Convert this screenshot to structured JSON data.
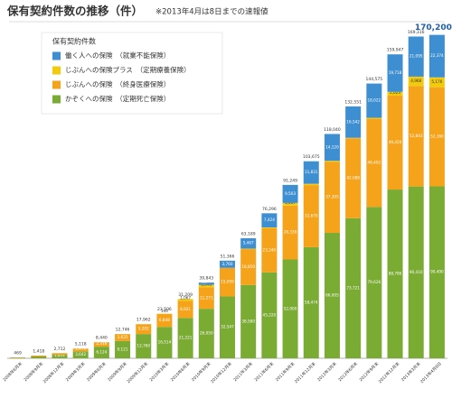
{
  "chart_data": {
    "type": "stacked-bar",
    "title": "保有契約件数の推移（件）",
    "subtitle": "※2013年4月は8日までの速報値",
    "legend_title": "保有契約件数",
    "categories": [
      "2008年6月末",
      "2008年9月末",
      "2008年12月末",
      "2009年3月末",
      "2009年6月末",
      "2009年9月末",
      "2009年12月末",
      "2010年3月末",
      "2010年6月末",
      "2010年9月末",
      "2010年12月末",
      "2011年3月末",
      "2011年6月末",
      "2011年9月末",
      "2011年12月末",
      "2012年3月末",
      "2012年6月末",
      "2012年9月末",
      "2012年12月末",
      "2013年3月末",
      "2013年4月8日"
    ],
    "series": [
      {
        "name": "かぞくへの保険　（定期死亡保険）",
        "color": "#7aab33",
        "values": [
          281,
          954,
          1851,
          3642,
          6124,
          9121,
          12760,
          16514,
          21221,
          26050,
          32547,
          38580,
          45220,
          52000,
          58474,
          66005,
          73721,
          79626,
          88786,
          90410,
          90490
        ],
        "value_labels": [
          "281",
          "954",
          "1,851",
          "3,642",
          "6,124",
          "9,121",
          "12,760",
          "16,514",
          "21,221",
          "26,050",
          "32,547",
          "38,580",
          "45,220",
          "52,000",
          "58,474",
          "66,005",
          "73,721",
          "79,626",
          "88,786",
          "90,410",
          "90,490"
        ]
      },
      {
        "name": "じぶんへの保険　（終身医療保険）",
        "color": "#f5a31a",
        "values": [
          188,
          464,
          861,
          1476,
          2316,
          3625,
          5202,
          6848,
          8921,
          11271,
          15059,
          18850,
          23240,
          28339,
          32670,
          37305,
          42088,
          46402,
          49420,
          52843,
          52160
        ],
        "value_labels": [
          "188",
          "464",
          "861",
          "1,476",
          "2,316",
          "3,625",
          "5,202",
          "6,848",
          "8,921",
          "11,271",
          "15,059",
          "18,850",
          "23,240",
          "28,339",
          "32,670",
          "37,305",
          "42,088",
          "46,402",
          "49,420",
          "52,843",
          "52,160"
        ]
      },
      {
        "name": "じぶんへの保険プラス　（定期療養保険）",
        "color": "#f2cc0c",
        "values": [
          null,
          null,
          null,
          null,
          null,
          null,
          null,
          144,
          1067,
          1345,
          null,
          292,
          412,
          1407,
          700,
          610,
          200,
          525,
          2023,
          4968,
          5176
        ],
        "value_labels": [
          null,
          null,
          null,
          null,
          null,
          null,
          null,
          "144",
          "1,067",
          "1,345",
          null,
          null,
          null,
          "1,407",
          null,
          null,
          null,
          null,
          "2,023",
          "4,968",
          "5,176"
        ]
      },
      {
        "name": "働く人への保険　（就業不能保険）",
        "color": "#3d8fd1",
        "values": [
          null,
          null,
          null,
          null,
          null,
          null,
          null,
          null,
          null,
          1177,
          3760,
          5467,
          7424,
          9503,
          11831,
          14120,
          16542,
          18022,
          19718,
          21095,
          22374
        ],
        "value_labels": [
          null,
          null,
          null,
          null,
          null,
          null,
          null,
          null,
          null,
          "1,177",
          "3,760",
          "5,467",
          "7,424",
          "9,503",
          "11,831",
          "14,120",
          "16,542",
          "18,022",
          "19,718",
          "21,095",
          "22,374"
        ]
      }
    ],
    "totals": [
      469,
      1418,
      2712,
      5118,
      8440,
      12746,
      17962,
      23506,
      31209,
      39843,
      51366,
      63189,
      76296,
      91249,
      103675,
      118040,
      132551,
      144575,
      159947,
      169316,
      170200
    ],
    "total_labels": [
      "469",
      "1,418",
      "2,712",
      "5,118",
      "8,440",
      "12,746",
      "17,962",
      "23,506",
      "31,209",
      "39,843",
      "51,366",
      "63,189",
      "76,296",
      "91,249",
      "103,675",
      "118,040",
      "132,551",
      "144,575",
      "159,947",
      "169,316",
      "170,200"
    ],
    "ylim": [
      0,
      180000
    ]
  }
}
